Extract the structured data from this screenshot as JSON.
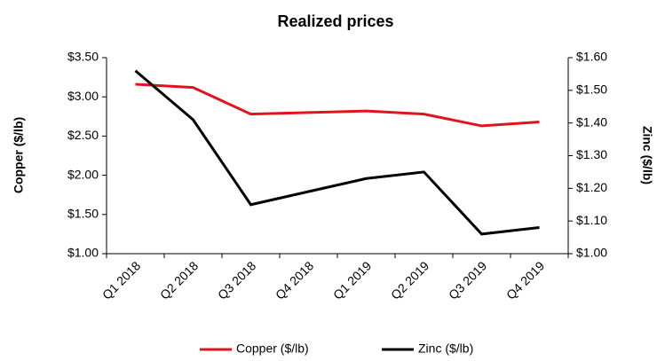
{
  "chart_data": {
    "type": "line",
    "title": "Realized prices",
    "categories": [
      "Q1 2018",
      "Q2 2018",
      "Q3 2018",
      "Q4 2018",
      "Q1 2019",
      "Q2 2019",
      "Q3 2019",
      "Q4 2019"
    ],
    "series": [
      {
        "name": "Copper ($/lb)",
        "color": "#e0141c",
        "values": [
          3.16,
          3.12,
          2.78,
          2.8,
          2.82,
          2.78,
          2.63,
          2.68
        ]
      },
      {
        "name": "Zinc ($/lb)",
        "color": "#000000",
        "axis": "y2",
        "values": [
          1.56,
          1.41,
          1.15,
          1.19,
          1.23,
          1.25,
          1.06,
          1.08
        ]
      }
    ],
    "ylabel": "Copper ($/lb)",
    "y2label": "Zinc ($/lb)",
    "ylim": [
      1.0,
      3.5
    ],
    "yticks": [
      {
        "value": 1.0,
        "label": "$1.00"
      },
      {
        "value": 1.5,
        "label": "$1.50"
      },
      {
        "value": 2.0,
        "label": "$2.00"
      },
      {
        "value": 2.5,
        "label": "$2.50"
      },
      {
        "value": 3.0,
        "label": "$3.00"
      },
      {
        "value": 3.5,
        "label": "$3.50"
      }
    ],
    "y2lim": [
      1.0,
      1.6
    ],
    "y2ticks": [
      {
        "value": 1.0,
        "label": "$1.00"
      },
      {
        "value": 1.1,
        "label": "$1.10"
      },
      {
        "value": 1.2,
        "label": "$1.20"
      },
      {
        "value": 1.3,
        "label": "$1.30"
      },
      {
        "value": 1.4,
        "label": "$1.40"
      },
      {
        "value": 1.5,
        "label": "$1.50"
      },
      {
        "value": 1.6,
        "label": "$1.60"
      }
    ],
    "grid": false,
    "legend": "bottom"
  }
}
